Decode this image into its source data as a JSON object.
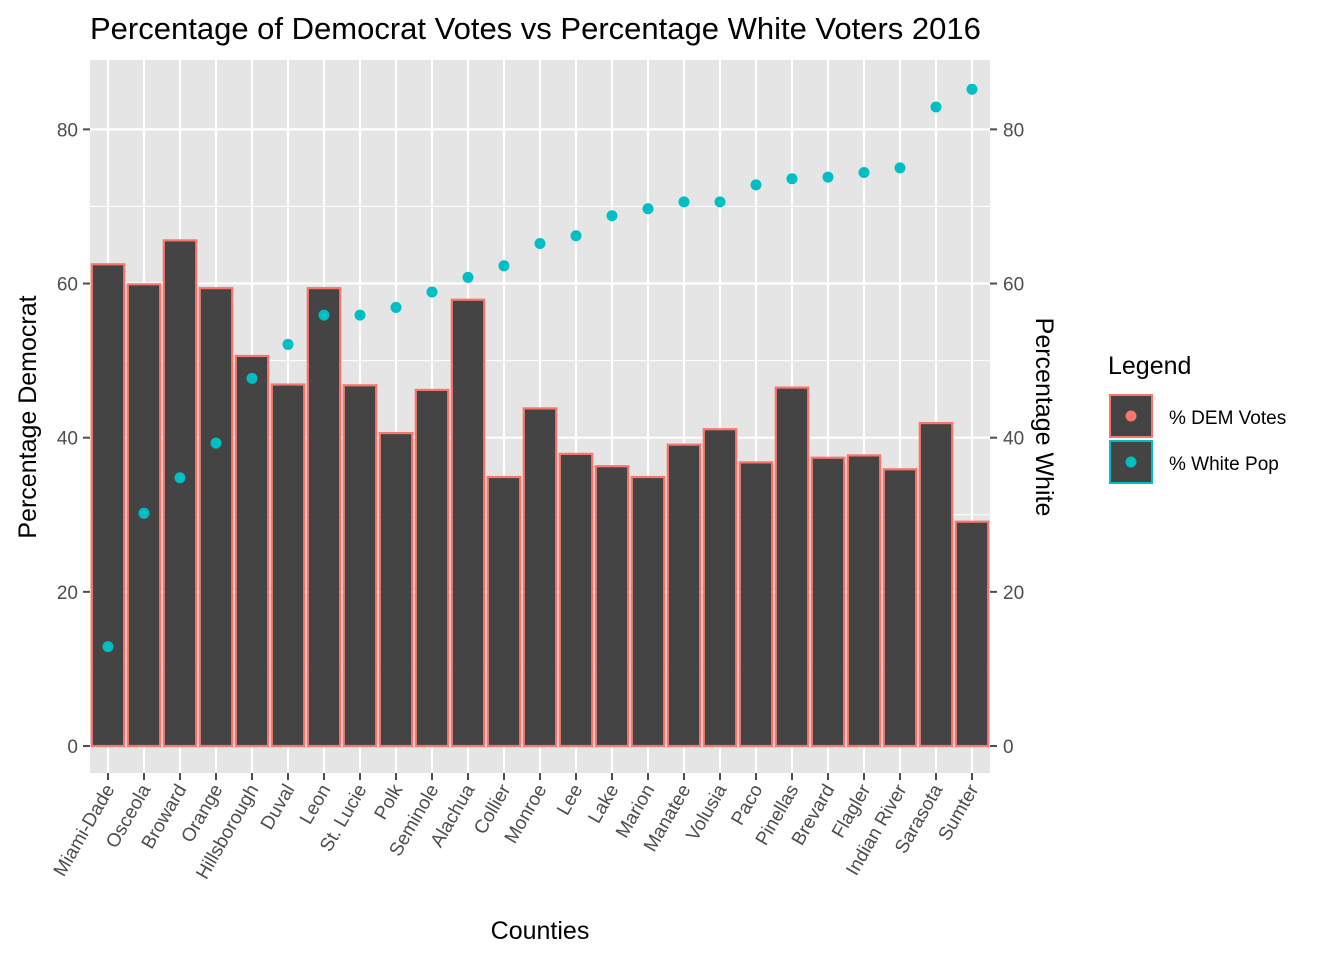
{
  "chart_data": {
    "type": "bar",
    "title": "Percentage of Democrat Votes vs Percentage White Voters 2016",
    "xlabel": "Counties",
    "ylabel": "Percentage Democrat",
    "y2label": "Percentage White",
    "ylim": [
      -3.5,
      89
    ],
    "y_ticks": [
      0,
      20,
      40,
      60,
      80
    ],
    "y2_ticks": [
      0,
      20,
      40,
      60,
      80
    ],
    "grid": true,
    "legend_position": "right",
    "categories": [
      "Miami-Dade",
      "Osceola",
      "Broward",
      "Orange",
      "Hillsborough",
      "Duval",
      "Leon",
      "St. Lucie",
      "Polk",
      "Seminole",
      "Alachua",
      "Collier",
      "Monroe",
      "Lee",
      "Lake",
      "Marion",
      "Manatee",
      "Volusia",
      "Paco",
      "Pinellas",
      "Brevard",
      "Flagler",
      "Indian River",
      "Sarasota",
      "Sumter"
    ],
    "series": [
      {
        "name": "% DEM Votes",
        "kind": "bar",
        "color": "#f8766d",
        "fill": "#444444",
        "values": [
          62.5,
          59.9,
          65.6,
          59.4,
          50.6,
          46.9,
          59.4,
          46.8,
          40.6,
          46.2,
          57.9,
          34.9,
          43.8,
          37.9,
          36.3,
          34.9,
          39.1,
          41.1,
          36.8,
          46.5,
          37.4,
          37.7,
          35.9,
          41.9,
          29.1
        ]
      },
      {
        "name": "% White Pop",
        "kind": "scatter",
        "color": "#00bfc4",
        "values": [
          12.9,
          30.2,
          34.8,
          39.3,
          47.7,
          52.1,
          55.9,
          55.9,
          56.9,
          58.9,
          60.8,
          62.3,
          65.2,
          66.2,
          68.8,
          69.7,
          70.6,
          70.6,
          72.8,
          73.6,
          73.8,
          74.4,
          75.0,
          82.9,
          85.2
        ]
      }
    ]
  },
  "legend": {
    "title": "Legend",
    "items": [
      "% DEM Votes",
      "% White Pop"
    ]
  },
  "colors": {
    "panel": "#e5e5e5",
    "grid": "#ffffff",
    "bar_fill": "#444444",
    "dem": "#f8766d",
    "white": "#00bfc4",
    "tick": "#4d4d4d"
  }
}
